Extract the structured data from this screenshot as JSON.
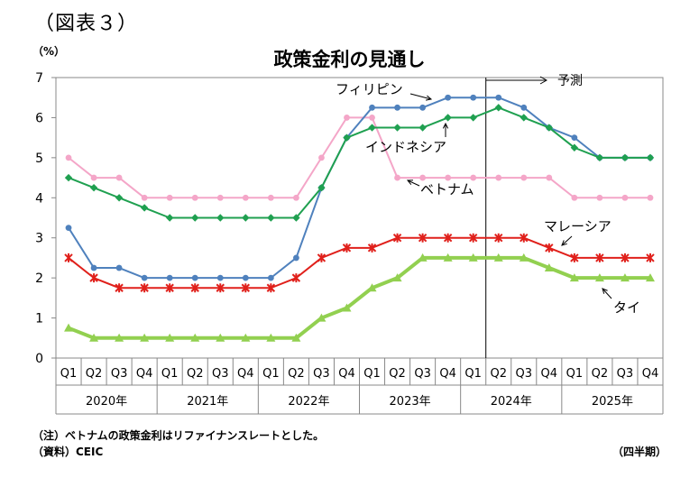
{
  "figure_label": "（図表３）",
  "unit_label": "（%）",
  "note": "（注）ベトナムの政策金利はリファイナンスレートとした。",
  "source": "（資料）CEIC",
  "period_label": "（四半期）",
  "chart_data": {
    "type": "line",
    "title": "政策金利の見通し",
    "ylabel": "（%）",
    "ylim": [
      0,
      7
    ],
    "yticks": [
      "0",
      "1",
      "2",
      "3",
      "4",
      "5",
      "6",
      "7"
    ],
    "categories": [
      "Q1",
      "Q2",
      "Q3",
      "Q4",
      "Q1",
      "Q2",
      "Q3",
      "Q4",
      "Q1",
      "Q2",
      "Q3",
      "Q4",
      "Q1",
      "Q2",
      "Q3",
      "Q4",
      "Q1",
      "Q2",
      "Q3",
      "Q4",
      "Q1",
      "Q2",
      "Q3",
      "Q4"
    ],
    "years": [
      "2020年",
      "2021年",
      "2022年",
      "2023年",
      "2024年",
      "2025年"
    ],
    "grid": false,
    "forecast_label": "予測",
    "forecast_start_index": 17,
    "series": [
      {
        "name": "ベトナム",
        "color": "#f4a6c8",
        "marker": "circle",
        "width": 2,
        "values": [
          5,
          4.5,
          4.5,
          4,
          4,
          4,
          4,
          4,
          4,
          4,
          5,
          6,
          6,
          4.5,
          4.5,
          4.5,
          4.5,
          4.5,
          4.5,
          4.5,
          4,
          4,
          4,
          4
        ]
      },
      {
        "name": "フィリピン",
        "color": "#4f81bd",
        "marker": "circle",
        "width": 2,
        "values": [
          3.25,
          2.25,
          2.25,
          2,
          2,
          2,
          2,
          2,
          2,
          2.5,
          4.25,
          5.5,
          6.25,
          6.25,
          6.25,
          6.5,
          6.5,
          6.5,
          6.25,
          5.75,
          5.5,
          5,
          5,
          5
        ]
      },
      {
        "name": "インドネシア",
        "color": "#1fa050",
        "marker": "diamond",
        "width": 2,
        "values": [
          4.5,
          4.25,
          4,
          3.75,
          3.5,
          3.5,
          3.5,
          3.5,
          3.5,
          3.5,
          4.25,
          5.5,
          5.75,
          5.75,
          5.75,
          6,
          6,
          6.25,
          6,
          5.75,
          5.25,
          5,
          5,
          5
        ]
      },
      {
        "name": "マレーシア",
        "color": "#e0201b",
        "marker": "star",
        "width": 2,
        "values": [
          2.5,
          2,
          1.75,
          1.75,
          1.75,
          1.75,
          1.75,
          1.75,
          1.75,
          2,
          2.5,
          2.75,
          2.75,
          3,
          3,
          3,
          3,
          3,
          3,
          2.75,
          2.5,
          2.5,
          2.5,
          2.5
        ]
      },
      {
        "name": "タイ",
        "color": "#92d050",
        "marker": "triangle",
        "width": 4,
        "values": [
          0.75,
          0.5,
          0.5,
          0.5,
          0.5,
          0.5,
          0.5,
          0.5,
          0.5,
          0.5,
          1,
          1.25,
          1.75,
          2,
          2.5,
          2.5,
          2.5,
          2.5,
          2.5,
          2.25,
          2,
          2,
          2,
          2
        ]
      }
    ]
  }
}
